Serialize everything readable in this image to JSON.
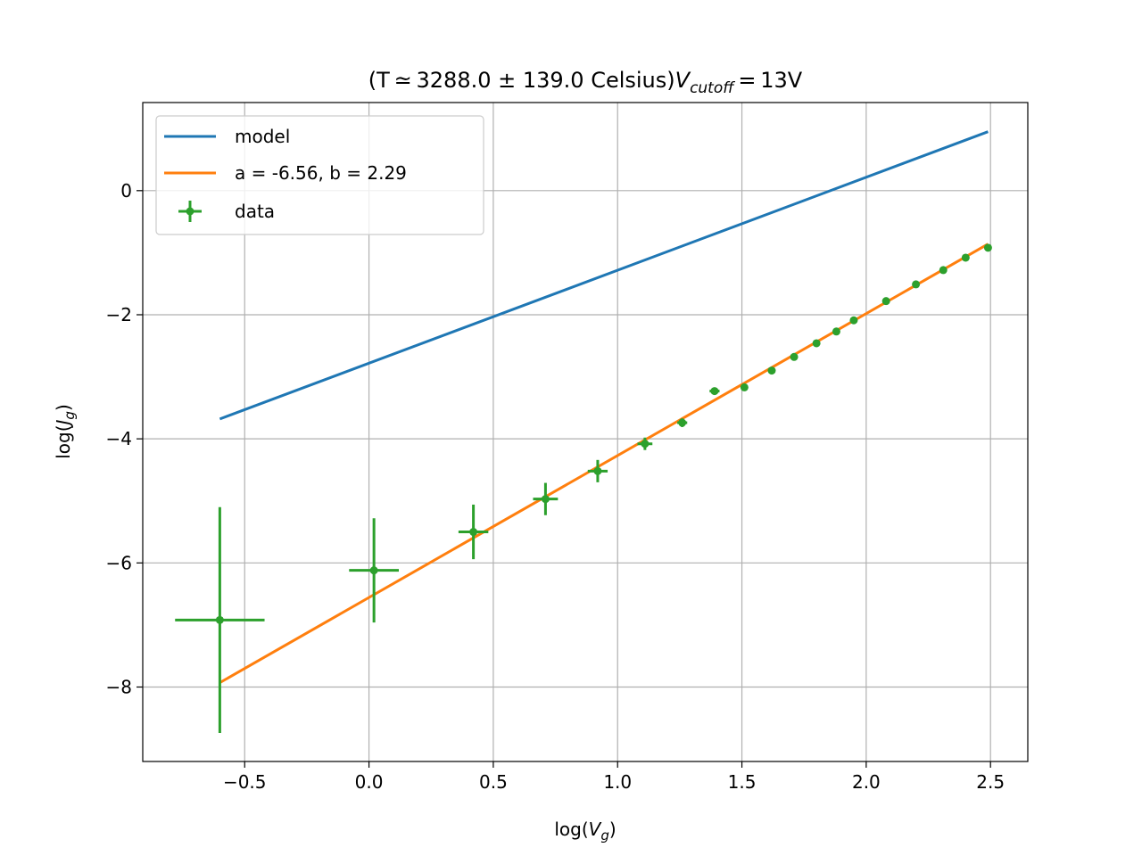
{
  "chart_data": {
    "type": "line",
    "title": {
      "prefix": "(T ≃ 3288.0 ± 139.0 Celsius)",
      "var": "V",
      "sub": "cutoff",
      "suffix": " = 13V"
    },
    "xlabel": {
      "pre": "log(",
      "var": "V",
      "sub": "g",
      "post": ")"
    },
    "ylabel": {
      "pre": "log(",
      "var": "J",
      "sub": "g",
      "post": ")"
    },
    "xlim": [
      -0.91,
      2.65
    ],
    "ylim": [
      -9.2,
      1.42
    ],
    "xticks": [
      -0.5,
      0.0,
      0.5,
      1.0,
      1.5,
      2.0,
      2.5
    ],
    "xtick_labels": [
      "−0.5",
      "0.0",
      "0.5",
      "1.0",
      "1.5",
      "2.0",
      "2.5"
    ],
    "yticks": [
      -8,
      -6,
      -4,
      -2,
      0
    ],
    "ytick_labels": [
      "−8",
      "−6",
      "−4",
      "−2",
      "0"
    ],
    "grid": true,
    "legend_position": "upper-left",
    "colors": {
      "model": "#1f77b4",
      "fit": "#ff7f0e",
      "data": "#2ca02c"
    },
    "series": [
      {
        "name": "model",
        "kind": "line",
        "x": [
          -0.6,
          2.49
        ],
        "y": [
          -3.68,
          0.95
        ]
      },
      {
        "name": "a = -6.56, b = 2.29",
        "kind": "line",
        "x": [
          -0.6,
          2.49
        ],
        "y": [
          -7.93,
          -0.86
        ]
      },
      {
        "name": "data",
        "kind": "errorbar",
        "x": [
          -0.6,
          0.02,
          0.42,
          0.71,
          0.92,
          1.11,
          1.26,
          1.39,
          1.51,
          1.62,
          1.71,
          1.8,
          1.88,
          1.95,
          2.08,
          2.2,
          2.31,
          2.4,
          2.49
        ],
        "y": [
          -6.92,
          -6.12,
          -5.5,
          -4.97,
          -4.52,
          -4.08,
          -3.74,
          -3.23,
          -3.17,
          -2.9,
          -2.68,
          -2.46,
          -2.27,
          -2.09,
          -1.78,
          -1.51,
          -1.28,
          -1.08,
          -0.92
        ],
        "xerr": [
          0.18,
          0.1,
          0.06,
          0.05,
          0.04,
          0.03,
          0.02,
          0.02,
          0.01,
          0.01,
          0.01,
          0.01,
          0.01,
          0.01,
          0.01,
          0.01,
          0.01,
          0.01,
          0.01
        ],
        "yerr": [
          1.82,
          0.84,
          0.44,
          0.26,
          0.18,
          0.1,
          0.07,
          0.05,
          0.04,
          0.03,
          0.03,
          0.02,
          0.02,
          0.02,
          0.02,
          0.02,
          0.02,
          0.02,
          0.02
        ]
      }
    ]
  }
}
